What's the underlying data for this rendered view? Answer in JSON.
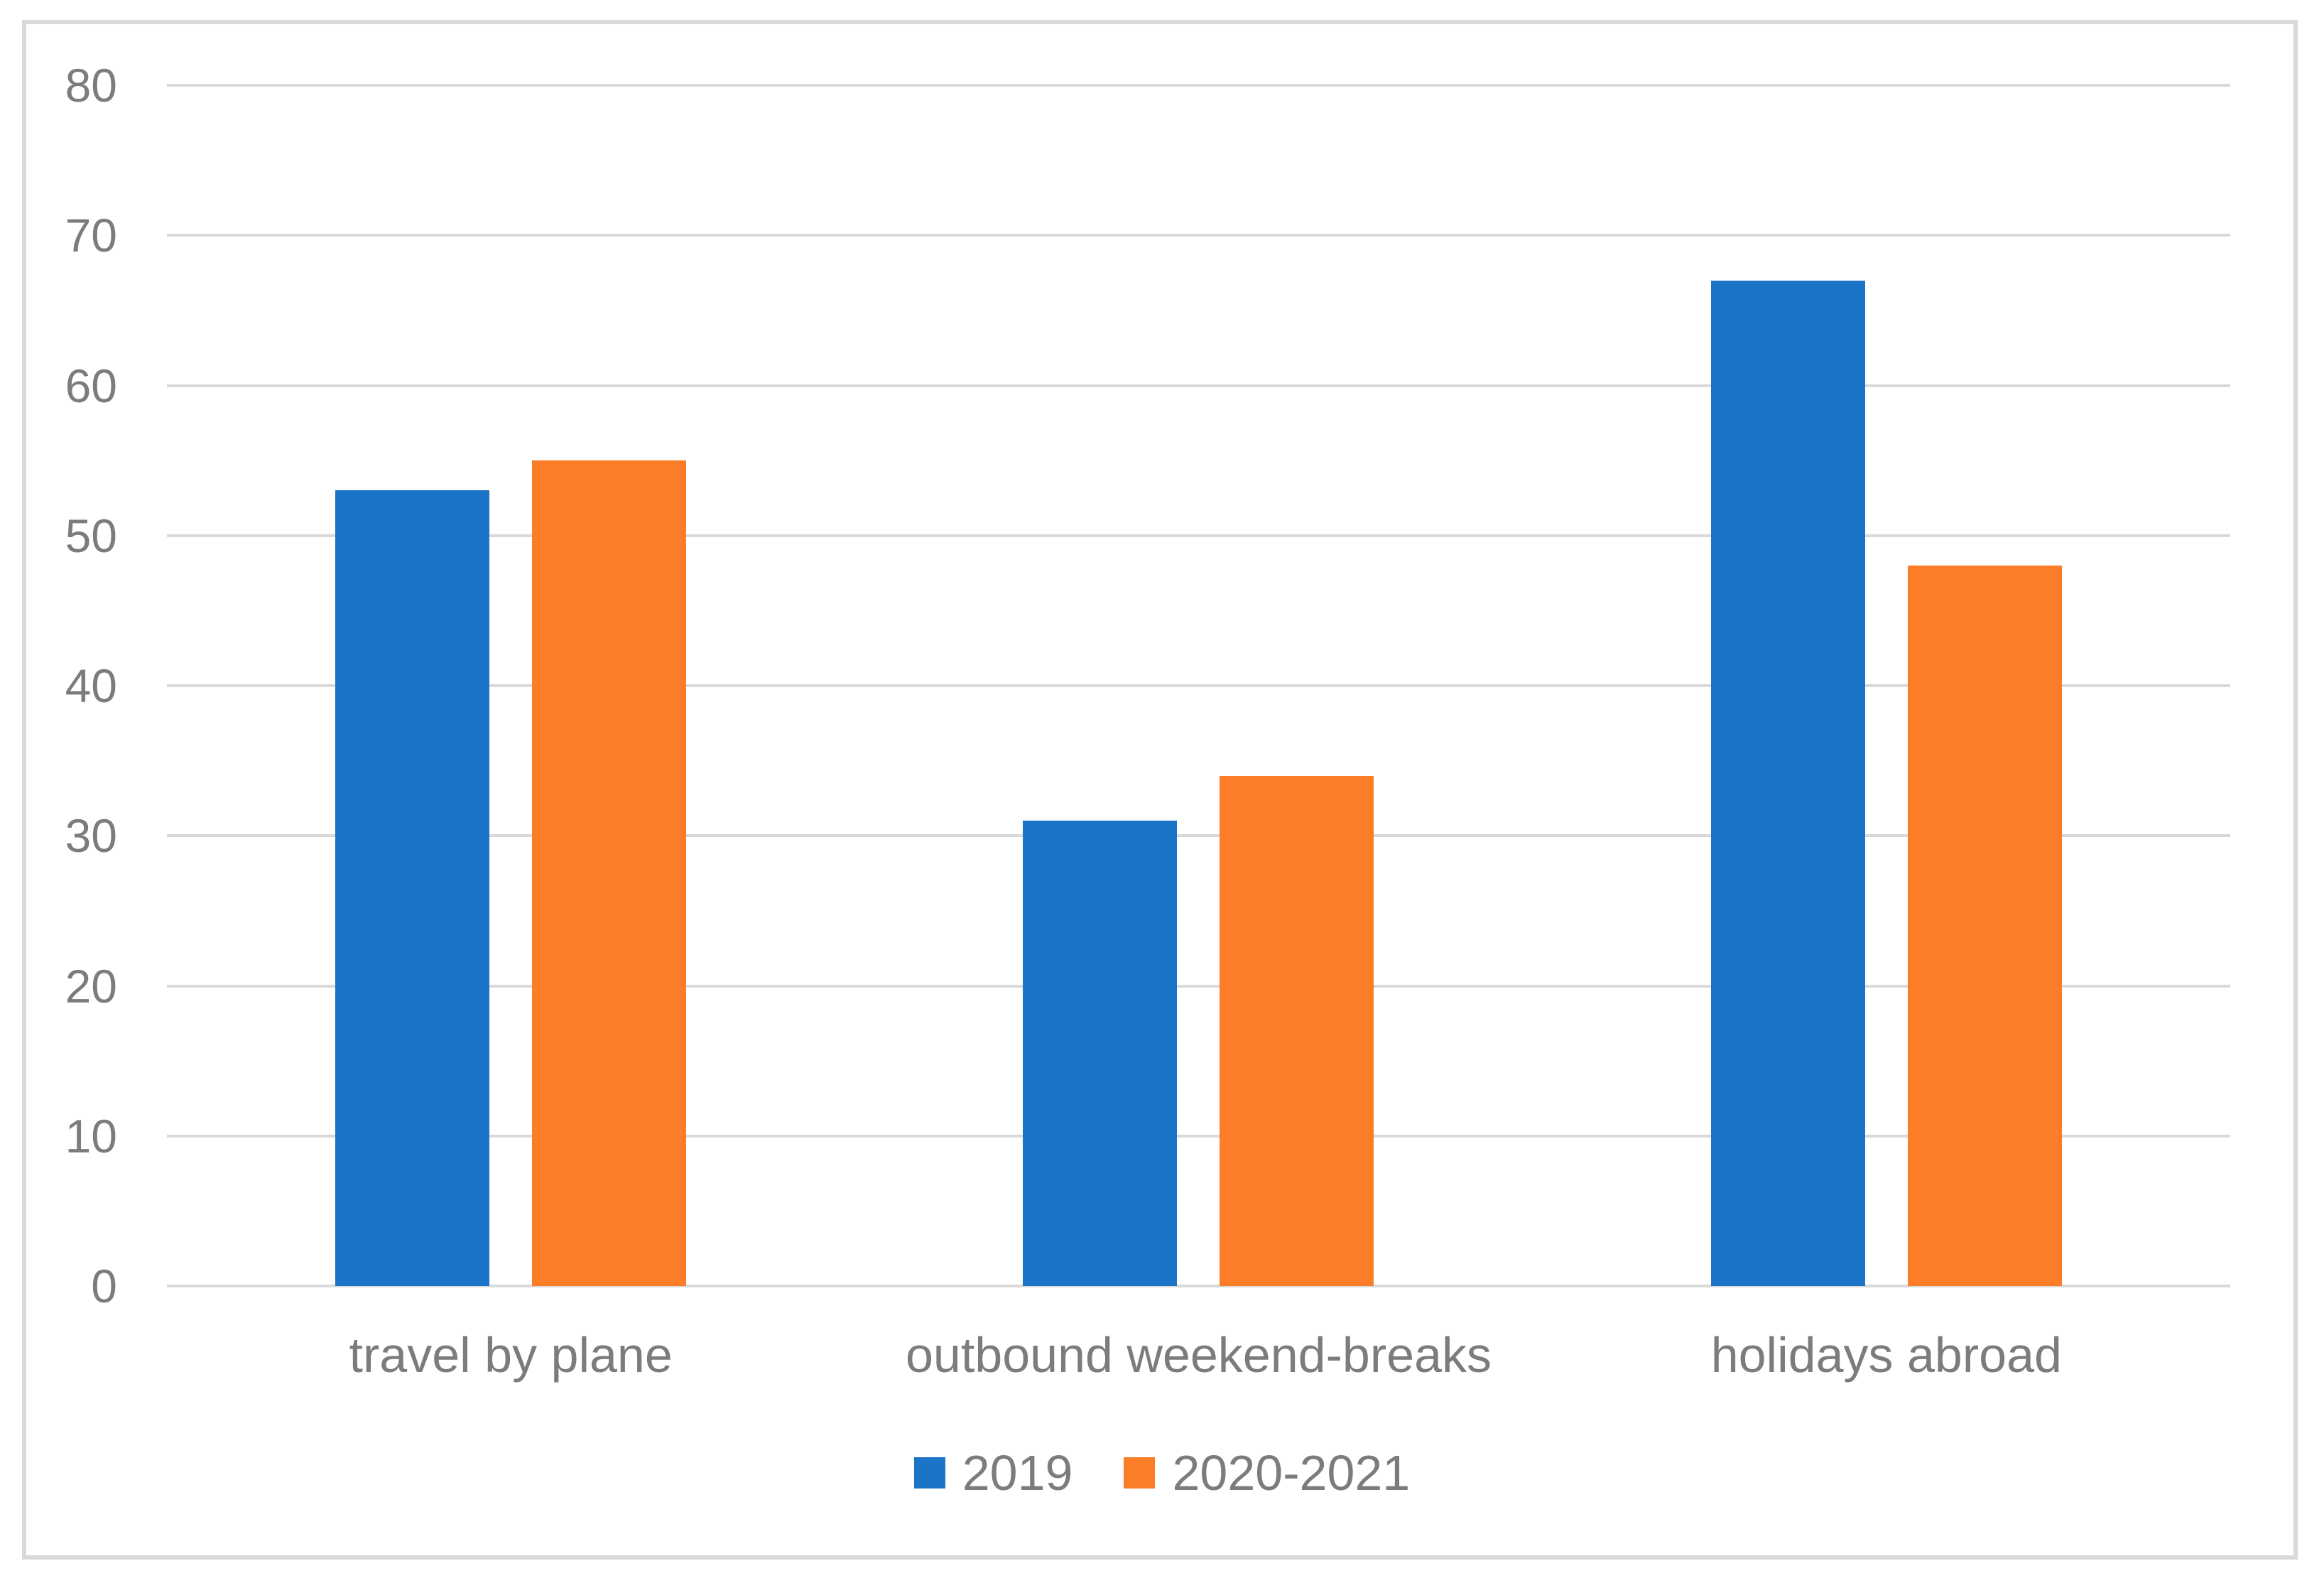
{
  "chart_data": {
    "type": "bar",
    "orientation": "vertical-clustered",
    "title": "",
    "xlabel": "",
    "ylabel": "",
    "categories": [
      "travel by plane",
      "outbound weekend-breaks",
      "holidays abroad"
    ],
    "series": [
      {
        "name": "2019",
        "color": "#1B74C8",
        "values": [
          53,
          31,
          67
        ]
      },
      {
        "name": "2020-2021",
        "color": "#FC7D28",
        "values": [
          55,
          34,
          48
        ]
      }
    ],
    "ylim": [
      0,
      80
    ],
    "ytick_step": 10,
    "ytick_labels": [
      "0",
      "10",
      "20",
      "30",
      "40",
      "50",
      "60",
      "70",
      "80"
    ],
    "grid": "horizontal",
    "legend_position": "bottom-center",
    "colors": {
      "gridline": "#D9D9D9",
      "frame_border": "#D9D9D9",
      "axis_text": "#7C7C7C",
      "background": "#FFFFFF"
    }
  }
}
